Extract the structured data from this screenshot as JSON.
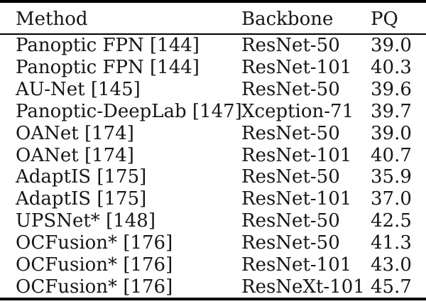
{
  "colors": {
    "background": "#ffffff",
    "text": "#161616",
    "rule": "#000000"
  },
  "table": {
    "header": {
      "method": "Method",
      "backbone": "Backbone",
      "pq": "PQ"
    },
    "rows": [
      {
        "method": "Panoptic FPN [144]",
        "backbone": "ResNet-50",
        "pq": "39.0"
      },
      {
        "method": "Panoptic FPN [144]",
        "backbone": "ResNet-101",
        "pq": "40.3"
      },
      {
        "method": "AU-Net [145]",
        "backbone": "ResNet-50",
        "pq": "39.6"
      },
      {
        "method": "Panoptic-DeepLab [147]",
        "backbone": "Xception-71",
        "pq": "39.7"
      },
      {
        "method": "OANet [174]",
        "backbone": "ResNet-50",
        "pq": "39.0"
      },
      {
        "method": "OANet [174]",
        "backbone": "ResNet-101",
        "pq": "40.7"
      },
      {
        "method": "AdaptIS [175]",
        "backbone": "ResNet-50",
        "pq": "35.9"
      },
      {
        "method": "AdaptIS [175]",
        "backbone": "ResNet-101",
        "pq": "37.0"
      },
      {
        "method": "UPSNet* [148]",
        "backbone": "ResNet-50",
        "pq": "42.5"
      },
      {
        "method": "OCFusion* [176]",
        "backbone": "ResNet-50",
        "pq": "41.3"
      },
      {
        "method": "OCFusion* [176]",
        "backbone": "ResNet-101",
        "pq": "43.0"
      },
      {
        "method": "OCFusion* [176]",
        "backbone": "ResNeXt-101",
        "pq": "45.7"
      }
    ]
  }
}
